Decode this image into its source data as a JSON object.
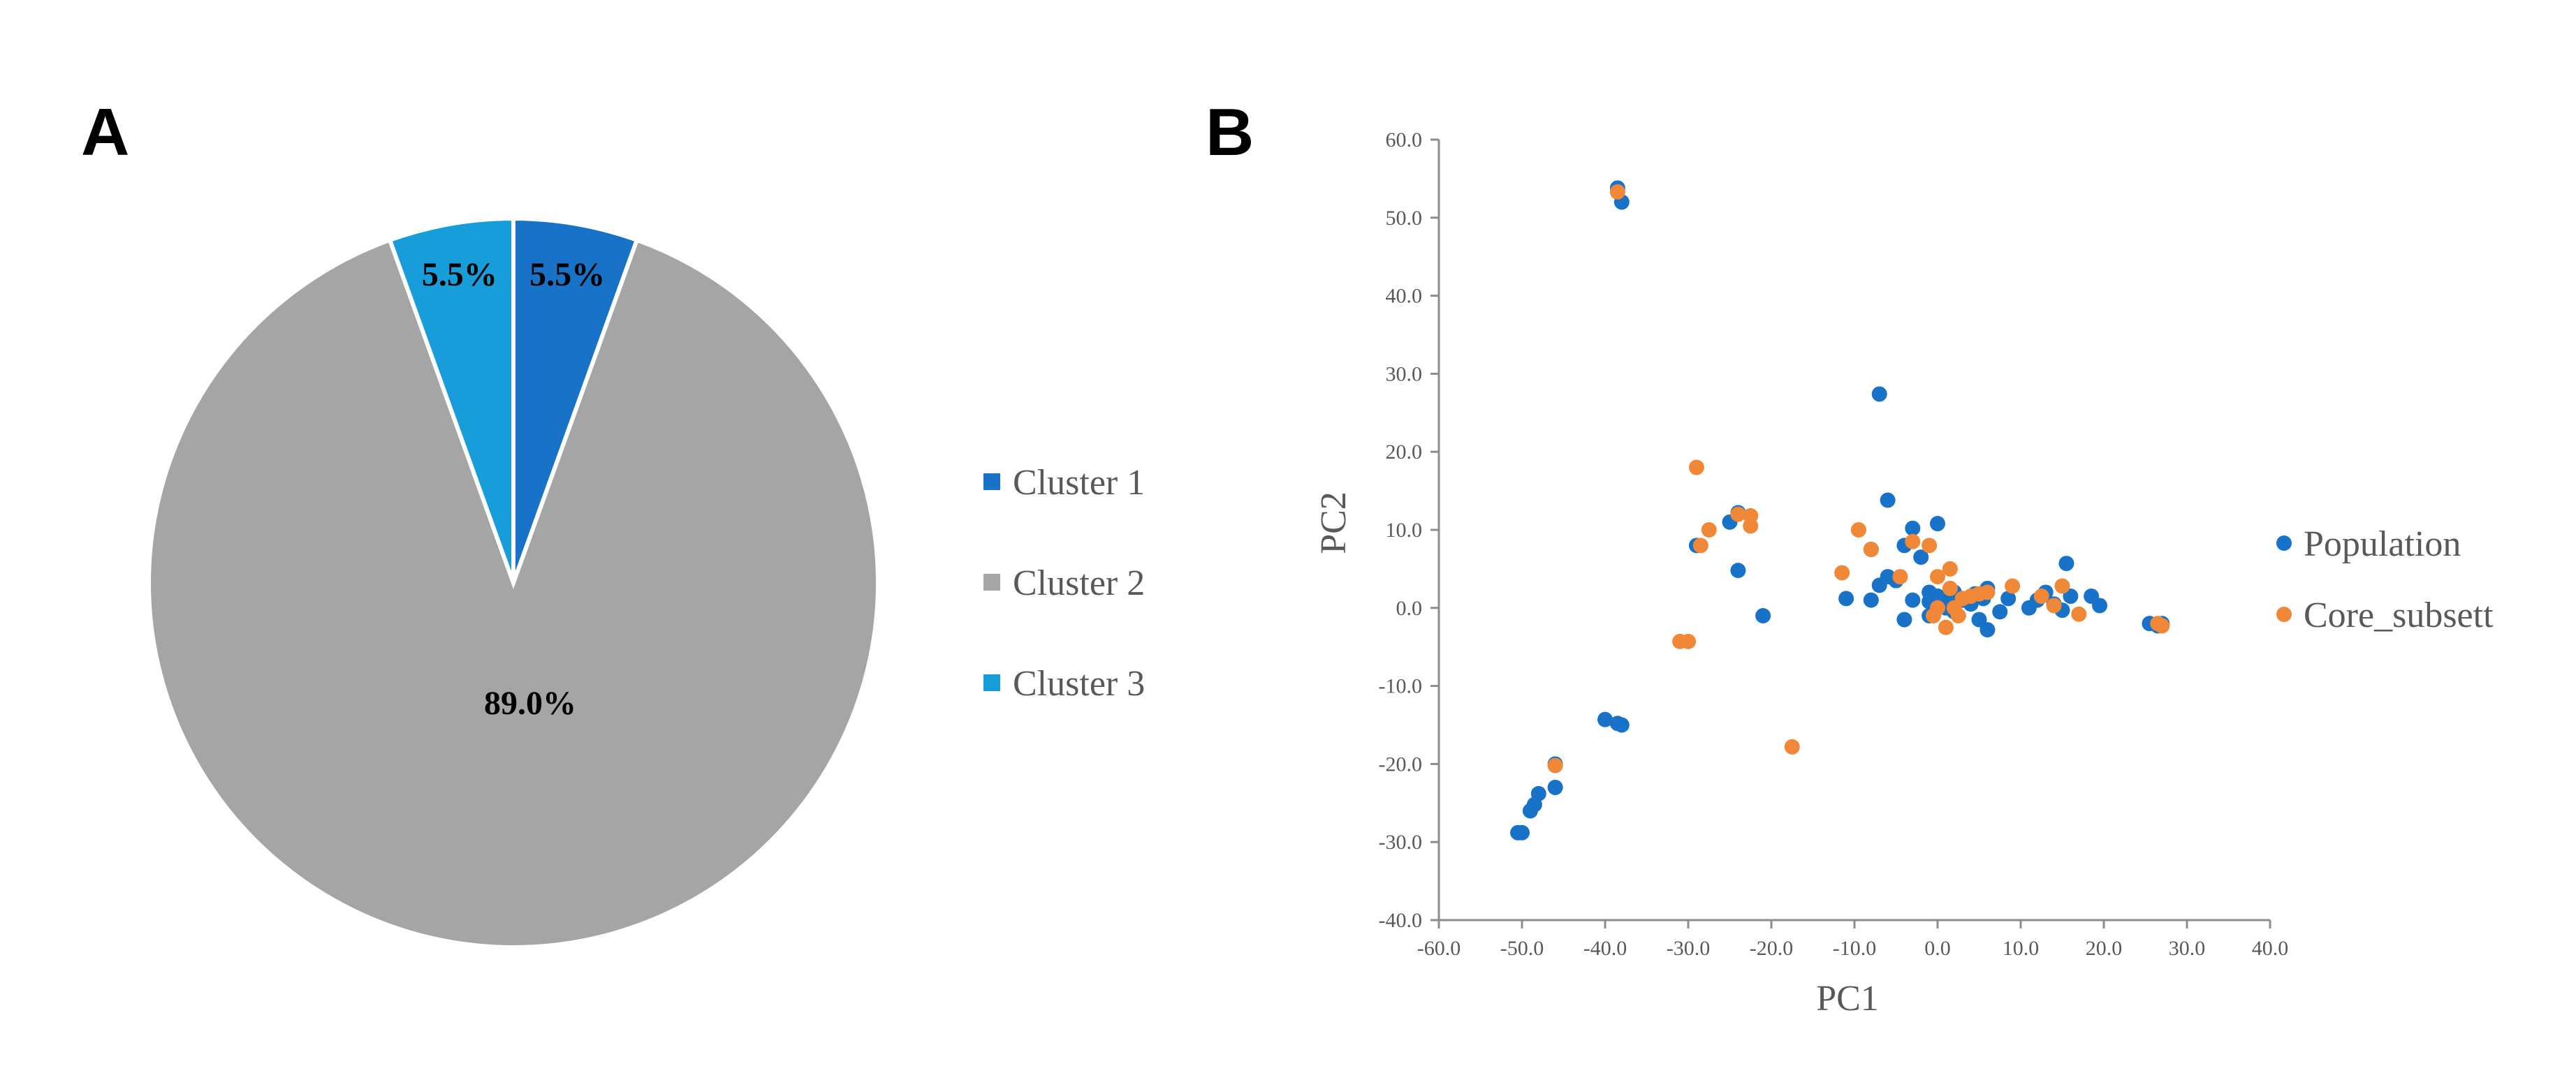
{
  "panel_labels": {
    "a": "A",
    "b": "B"
  },
  "chart_data": [
    {
      "type": "pie",
      "slices": [
        {
          "name": "Cluster 1",
          "value": 5.5,
          "label": "5.5%",
          "color": "#1772C8"
        },
        {
          "name": "Cluster 2",
          "value": 89.0,
          "label": "89.0%",
          "color": "#A5A5A5"
        },
        {
          "name": "Cluster 3",
          "value": 5.5,
          "label": "5.5%",
          "color": "#179DD9"
        }
      ],
      "legend": [
        "Cluster 1",
        "Cluster 2",
        "Cluster 3"
      ],
      "legend_position": "right"
    },
    {
      "type": "scatter",
      "xlabel": "PC1",
      "ylabel": "PC2",
      "xlim": [
        -60,
        40
      ],
      "ylim": [
        -40,
        60
      ],
      "xticks": [
        "-60.0",
        "-50.0",
        "-40.0",
        "-30.0",
        "-20.0",
        "-10.0",
        "0.0",
        "10.0",
        "20.0",
        "30.0",
        "40.0"
      ],
      "yticks": [
        "60.0",
        "50.0",
        "40.0",
        "30.0",
        "20.0",
        "10.0",
        "0.0",
        "-10.0",
        "-20.0",
        "-30.0",
        "-40.0"
      ],
      "legend_position": "right",
      "series": [
        {
          "name": "Population",
          "color": "#1772C8",
          "points": [
            [
              -38.5,
              53.8
            ],
            [
              -38,
              52
            ],
            [
              -7,
              27.4
            ],
            [
              -50.5,
              -28.8
            ],
            [
              -50,
              -28.8
            ],
            [
              -49,
              -26
            ],
            [
              -48.5,
              -25.2
            ],
            [
              -48,
              -23.8
            ],
            [
              -46,
              -23
            ],
            [
              -46,
              -20
            ],
            [
              -40,
              -14.3
            ],
            [
              -38.5,
              -14.8
            ],
            [
              -38,
              -15
            ],
            [
              -29,
              8
            ],
            [
              -24,
              12.2
            ],
            [
              -25,
              11
            ],
            [
              -24,
              4.8
            ],
            [
              -21,
              -1
            ],
            [
              -11,
              1.2
            ],
            [
              -8,
              1
            ],
            [
              -7,
              2.9
            ],
            [
              -8,
              7.5
            ],
            [
              -6,
              13.8
            ],
            [
              -6,
              4
            ],
            [
              -4,
              8
            ],
            [
              -3,
              10.2
            ],
            [
              -5,
              3.5
            ],
            [
              -4,
              -1.5
            ],
            [
              -3,
              1
            ],
            [
              -2,
              6.5
            ],
            [
              -1,
              0.8
            ],
            [
              -1,
              -1
            ],
            [
              -1,
              2
            ],
            [
              0,
              1.5
            ],
            [
              0,
              10.8
            ],
            [
              1,
              0
            ],
            [
              1.5,
              1.5
            ],
            [
              2,
              -0.5
            ],
            [
              2,
              2
            ],
            [
              3,
              1
            ],
            [
              4,
              0.5
            ],
            [
              4.5,
              1.8
            ],
            [
              5,
              -1.5
            ],
            [
              5.5,
              1.2
            ],
            [
              6,
              -2.8
            ],
            [
              6,
              2.5
            ],
            [
              7.5,
              -0.5
            ],
            [
              8.5,
              1.2
            ],
            [
              11,
              0
            ],
            [
              12,
              1
            ],
            [
              13,
              2
            ],
            [
              14,
              0.5
            ],
            [
              15,
              -0.3
            ],
            [
              15.5,
              5.7
            ],
            [
              16,
              1.5
            ],
            [
              18.5,
              1.5
            ],
            [
              19.5,
              0.3
            ],
            [
              25.5,
              -2
            ],
            [
              26.5,
              -2.3
            ],
            [
              27,
              -2
            ]
          ]
        },
        {
          "name": "Core_subsett",
          "color": "#F08838",
          "points": [
            [
              -38.5,
              53.3
            ],
            [
              -46,
              -20.2
            ],
            [
              -29,
              18
            ],
            [
              -27.5,
              10
            ],
            [
              -28.5,
              8
            ],
            [
              -31,
              -4.3
            ],
            [
              -30,
              -4.3
            ],
            [
              -24,
              12
            ],
            [
              -22.5,
              10.5
            ],
            [
              -22.5,
              11.8
            ],
            [
              -17.5,
              -17.8
            ],
            [
              -11.5,
              4.5
            ],
            [
              -9.5,
              10
            ],
            [
              -8,
              7.5
            ],
            [
              -4.5,
              4
            ],
            [
              -3,
              8.5
            ],
            [
              -1,
              8
            ],
            [
              -0.5,
              -1
            ],
            [
              0,
              4
            ],
            [
              0,
              0
            ],
            [
              1,
              -2.5
            ],
            [
              1.5,
              2.5
            ],
            [
              1.5,
              5
            ],
            [
              2,
              0
            ],
            [
              2.5,
              -1
            ],
            [
              3,
              1.2
            ],
            [
              4,
              1.5
            ],
            [
              5,
              1.8
            ],
            [
              6,
              2
            ],
            [
              9,
              2.8
            ],
            [
              12.5,
              1.5
            ],
            [
              14,
              0.3
            ],
            [
              15,
              2.8
            ],
            [
              17,
              -0.8
            ],
            [
              26.5,
              -2
            ],
            [
              27,
              -2.3
            ]
          ]
        }
      ]
    }
  ]
}
